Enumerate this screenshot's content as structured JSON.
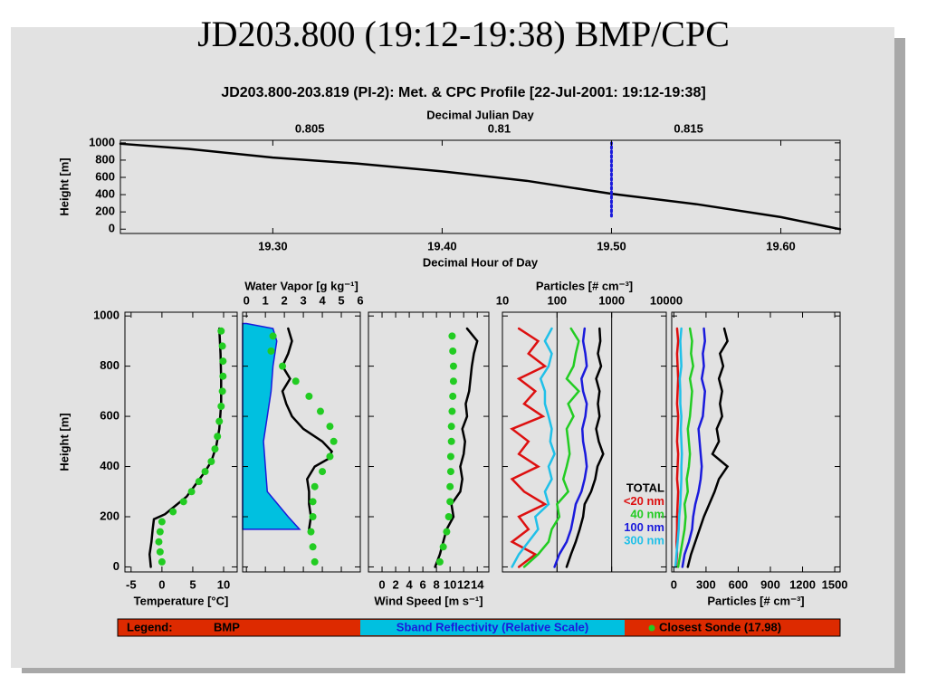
{
  "title": "JD203.800 (19:12-19:38) BMP/CPC",
  "legend_bar": {
    "label": "Legend:",
    "items": [
      "BMP",
      "Sband Reflectivity (Relative Scale)",
      "Closest Sonde (17.98)"
    ]
  },
  "chart_data": [
    {
      "type": "line",
      "title": "JD203.800-203.819 (PI-2): Met. & CPC Profile [22-Jul-2001: 19:12-19:38]",
      "x_label": "Decimal Hour of Day",
      "x2_label": "Decimal Julian Day",
      "y_label": "Height [m]",
      "xlim": [
        19.21,
        19.635
      ],
      "xticks": [
        {
          "value": 19.3,
          "label": "19.30"
        },
        {
          "value": 19.4,
          "label": "19.40"
        },
        {
          "value": 19.5,
          "label": "19.50"
        },
        {
          "value": 19.6,
          "label": "19.60"
        }
      ],
      "x2lim": [
        0.8,
        0.819
      ],
      "x2ticks": [
        0.805,
        0.81,
        0.815
      ],
      "ylim": [
        -50,
        1030
      ],
      "yticks": [
        0,
        200,
        400,
        600,
        800,
        1000
      ],
      "xaxis_position": "bottom",
      "series": [
        {
          "color": "#000000",
          "style": "line",
          "x": [
            19.21,
            19.25,
            19.3,
            19.35,
            19.4,
            19.45,
            19.5,
            19.55,
            19.6,
            19.635
          ],
          "y": [
            990,
            930,
            830,
            760,
            670,
            560,
            410,
            290,
            140,
            0
          ]
        },
        {
          "color": "#1a1adc",
          "style": "dotted",
          "x": [
            19.5,
            19.5
          ],
          "y": [
            150,
            1000
          ]
        }
      ]
    },
    {
      "type": "line",
      "x_label": "Temperature [°C]",
      "y_label": "Height [m]",
      "xlim": [
        -6,
        12.2
      ],
      "xticks": [
        -5,
        0,
        5,
        10
      ],
      "ylim": [
        -20,
        1015
      ],
      "yticks": [
        0,
        200,
        400,
        600,
        800,
        1000
      ],
      "xaxis_position": "bottom",
      "series": [
        {
          "color": "#000000",
          "style": "line",
          "x": [
            -1.8,
            -2,
            -1.7,
            -1.5,
            -1.3,
            0.5,
            2,
            4,
            5.5,
            7,
            8,
            8.8,
            9.3,
            9.6,
            9.6,
            9.5,
            9.3
          ],
          "y": [
            0,
            50,
            100,
            150,
            190,
            210,
            240,
            280,
            330,
            380,
            420,
            480,
            550,
            650,
            750,
            850,
            950
          ]
        },
        {
          "color": "#22cc22",
          "style": "dots",
          "x": [
            0,
            -0.3,
            -0.5,
            -0.3,
            0,
            1.8,
            3.5,
            4.8,
            6,
            7,
            8,
            8.6,
            9,
            9.3,
            9.6,
            9.8,
            9.9,
            9.9,
            9.8,
            9.6
          ],
          "y": [
            20,
            60,
            100,
            140,
            180,
            220,
            260,
            300,
            340,
            380,
            420,
            470,
            520,
            580,
            640,
            700,
            760,
            820,
            880,
            940
          ]
        }
      ]
    },
    {
      "type": "line",
      "x_label": "Water Vapor [g kg⁻¹]",
      "xlim": [
        -0.2,
        6
      ],
      "xticks": [
        0,
        1,
        2,
        3,
        4,
        5,
        6
      ],
      "ylim": [
        -20,
        1015
      ],
      "yticks": [
        0,
        200,
        400,
        600,
        800,
        1000
      ],
      "xaxis_position": "top",
      "series": [
        {
          "color": "#00c0e0",
          "style": "area",
          "x": [
            2.8,
            2.2,
            1.1,
            1.0,
            0.9,
            1.1,
            1.3,
            1.4,
            1.6,
            1.4,
            0
          ],
          "y": [
            150,
            200,
            300,
            400,
            500,
            600,
            700,
            800,
            900,
            950,
            970
          ]
        },
        {
          "color": "#000000",
          "style": "line",
          "x": [
            3.3,
            3.4,
            3.3,
            3.3,
            3.2,
            3.6,
            4.3,
            4.5,
            4.0,
            3.0,
            2.4,
            2.1,
            1.9,
            2.3,
            1.9,
            2.2,
            2.4,
            2.2
          ],
          "y": [
            150,
            200,
            250,
            300,
            350,
            400,
            430,
            460,
            500,
            550,
            600,
            650,
            700,
            750,
            800,
            850,
            900,
            950
          ]
        },
        {
          "color": "#22cc22",
          "style": "dots",
          "x": [
            3.6,
            3.5,
            3.4,
            3.5,
            3.5,
            3.6,
            4.0,
            4.4,
            4.6,
            4.4,
            3.9,
            3.3,
            2.6,
            1.9,
            1.3,
            1.4
          ],
          "y": [
            20,
            80,
            140,
            200,
            260,
            320,
            380,
            440,
            500,
            560,
            620,
            680,
            740,
            800,
            860,
            920
          ]
        }
      ]
    },
    {
      "type": "line",
      "x_label": "Wind Speed [m s⁻¹]",
      "xlim": [
        -2,
        15.7
      ],
      "xticks": [
        0,
        2,
        4,
        6,
        8,
        10,
        12,
        14
      ],
      "ylim": [
        -20,
        1015
      ],
      "yticks": [
        0,
        200,
        400,
        600,
        800,
        1000
      ],
      "xaxis_position": "bottom",
      "series": [
        {
          "color": "#000000",
          "style": "line",
          "x": [
            7.8,
            8.5,
            9,
            9.5,
            10.5,
            10.2,
            11.5,
            11.8,
            11.5,
            12,
            12.2,
            11.8,
            12.5,
            12.3,
            12.8,
            13,
            13.2,
            13.5,
            14,
            12.5
          ],
          "y": [
            0,
            50,
            100,
            150,
            200,
            250,
            300,
            350,
            400,
            450,
            500,
            550,
            600,
            650,
            700,
            750,
            800,
            850,
            900,
            950
          ]
        },
        {
          "color": "#22cc22",
          "style": "dots",
          "x": [
            8.5,
            9,
            9.5,
            9.8,
            10,
            10,
            10.1,
            10.1,
            10.2,
            10.2,
            10.3,
            10.4,
            10.5,
            10.5,
            10.4,
            10.3
          ],
          "y": [
            20,
            80,
            140,
            200,
            260,
            320,
            380,
            440,
            500,
            560,
            620,
            680,
            740,
            800,
            860,
            920
          ]
        }
      ]
    },
    {
      "type": "line",
      "x_label": "Particles [# cm⁻³]",
      "xlog": true,
      "grid": true,
      "legend": "lower right",
      "xlim": [
        10,
        10000
      ],
      "xticks": [
        10,
        100,
        1000,
        10000
      ],
      "ylim": [
        -20,
        1015
      ],
      "yticks": [
        0,
        200,
        400,
        600,
        800,
        1000
      ],
      "xaxis_position": "top",
      "y": [
        0,
        50,
        100,
        150,
        200,
        250,
        300,
        350,
        400,
        450,
        500,
        550,
        600,
        650,
        700,
        750,
        800,
        850,
        900,
        950
      ],
      "series": [
        {
          "name": "TOTAL",
          "color": "#000000",
          "style": "line",
          "x": [
            150,
            180,
            220,
            260,
            300,
            320,
            420,
            500,
            550,
            700,
            580,
            520,
            600,
            560,
            600,
            520,
            640,
            560,
            620,
            600
          ]
        },
        {
          "name": "<20 nm",
          "color": "#dd1010",
          "style": "line",
          "x": [
            20,
            40,
            15,
            30,
            20,
            60,
            25,
            15,
            45,
            20,
            30,
            15,
            55,
            25,
            40,
            20,
            60,
            30,
            45,
            20
          ]
        },
        {
          "name": "40 nm",
          "color": "#22cc22",
          "style": "line",
          "x": [
            25,
            45,
            70,
            80,
            110,
            100,
            160,
            130,
            150,
            170,
            160,
            150,
            200,
            160,
            250,
            150,
            200,
            220,
            250,
            180
          ]
        },
        {
          "name": "100 nm",
          "color": "#1a1adc",
          "style": "line",
          "x": [
            90,
            110,
            150,
            180,
            200,
            220,
            280,
            320,
            350,
            330,
            300,
            290,
            330,
            350,
            300,
            280,
            350,
            330,
            300,
            320
          ]
        },
        {
          "name": "300 nm",
          "color": "#20c0e8",
          "style": "line",
          "x": [
            15,
            20,
            30,
            45,
            40,
            70,
            60,
            80,
            70,
            90,
            75,
            80,
            70,
            60,
            60,
            50,
            70,
            80,
            60,
            80
          ]
        }
      ]
    },
    {
      "type": "line",
      "x_label": "Particles [# cm⁻³]",
      "xlim": [
        -20,
        1550
      ],
      "xticks": [
        0,
        300,
        600,
        900,
        1200,
        1500
      ],
      "ylim": [
        -20,
        1015
      ],
      "yticks": [
        0,
        200,
        400,
        600,
        800,
        1000
      ],
      "xaxis_position": "bottom",
      "y": [
        0,
        50,
        100,
        150,
        200,
        250,
        300,
        350,
        400,
        450,
        500,
        550,
        600,
        650,
        700,
        750,
        800,
        850,
        900,
        950
      ],
      "series": [
        {
          "color": "#000000",
          "style": "line",
          "x": [
            130,
            160,
            200,
            240,
            280,
            330,
            380,
            420,
            500,
            360,
            420,
            400,
            450,
            430,
            450,
            420,
            460,
            430,
            500,
            470
          ]
        },
        {
          "color": "#dd1010",
          "style": "line",
          "x": [
            20,
            30,
            25,
            30,
            30,
            35,
            40,
            30,
            35,
            40,
            30,
            35,
            40,
            30,
            35,
            40,
            35,
            30,
            40,
            30
          ]
        },
        {
          "color": "#22cc22",
          "style": "line",
          "x": [
            40,
            60,
            80,
            100,
            110,
            100,
            130,
            120,
            140,
            150,
            140,
            130,
            150,
            160,
            170,
            150,
            180,
            160,
            170,
            150
          ]
        },
        {
          "color": "#1a1adc",
          "style": "line",
          "x": [
            80,
            100,
            140,
            170,
            180,
            200,
            230,
            250,
            260,
            250,
            240,
            230,
            270,
            280,
            290,
            260,
            280,
            270,
            290,
            280
          ]
        },
        {
          "color": "#20c0e8",
          "style": "line",
          "x": [
            15,
            25,
            35,
            45,
            50,
            60,
            65,
            70,
            70,
            75,
            70,
            65,
            70,
            60,
            60,
            55,
            70,
            65,
            60,
            70
          ]
        }
      ]
    }
  ]
}
